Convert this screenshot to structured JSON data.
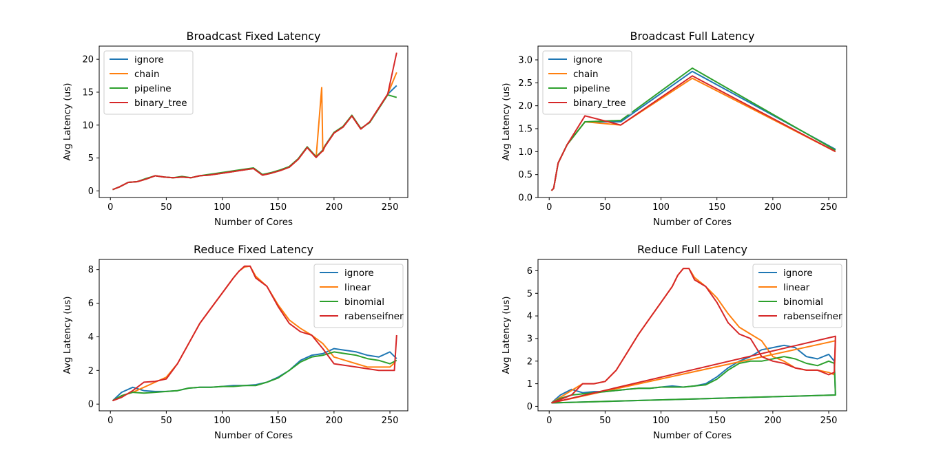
{
  "chart_data": [
    {
      "type": "line",
      "title": "Broadcast Fixed Latency",
      "xlabel": "Number of Cores",
      "ylabel": "Avg Latency (us)",
      "xlim": [
        -10,
        266
      ],
      "ylim": [
        -1,
        22
      ],
      "xticks": [
        0,
        50,
        100,
        150,
        200,
        250
      ],
      "yticks": [
        0,
        5,
        10,
        15,
        20
      ],
      "legend": "top-left",
      "series": [
        {
          "name": "ignore",
          "color": "#1f77b4",
          "x": [
            2,
            8,
            16,
            24,
            32,
            40,
            48,
            56,
            64,
            72,
            80,
            88,
            96,
            104,
            112,
            120,
            128,
            136,
            144,
            152,
            160,
            168,
            176,
            184,
            190,
            192,
            200,
            208,
            216,
            224,
            232,
            240,
            248,
            256
          ],
          "y": [
            0.2,
            0.6,
            1.3,
            1.4,
            1.8,
            2.3,
            2.1,
            2.0,
            2.1,
            2.0,
            2.3,
            2.4,
            2.6,
            2.8,
            3.0,
            3.2,
            3.4,
            2.4,
            2.7,
            3.1,
            3.6,
            4.8,
            6.6,
            5.1,
            6.2,
            6.8,
            8.8,
            9.7,
            11.4,
            9.4,
            10.5,
            12.6,
            14.7,
            16.0
          ]
        },
        {
          "name": "chain",
          "color": "#ff7f0e",
          "x": [
            2,
            8,
            16,
            24,
            32,
            40,
            48,
            56,
            64,
            72,
            80,
            88,
            96,
            104,
            112,
            120,
            128,
            136,
            144,
            152,
            160,
            168,
            176,
            184,
            189,
            190,
            192,
            200,
            208,
            216,
            224,
            232,
            240,
            248,
            256
          ],
          "y": [
            0.2,
            0.6,
            1.3,
            1.4,
            1.8,
            2.3,
            2.1,
            2.0,
            2.1,
            2.0,
            2.3,
            2.4,
            2.6,
            2.8,
            3.0,
            3.2,
            3.4,
            2.4,
            2.7,
            3.1,
            3.6,
            4.8,
            6.6,
            5.1,
            15.7,
            6.0,
            6.8,
            8.8,
            9.7,
            11.4,
            9.4,
            10.5,
            12.6,
            14.7,
            18.0
          ]
        },
        {
          "name": "pipeline",
          "color": "#2ca02c",
          "x": [
            2,
            8,
            16,
            24,
            32,
            40,
            48,
            56,
            64,
            72,
            80,
            88,
            96,
            104,
            112,
            120,
            128,
            136,
            144,
            152,
            160,
            168,
            176,
            184,
            190,
            192,
            200,
            208,
            216,
            224,
            232,
            240,
            248,
            256
          ],
          "y": [
            0.2,
            0.6,
            1.3,
            1.4,
            1.9,
            2.3,
            2.1,
            2.0,
            2.2,
            2.0,
            2.3,
            2.5,
            2.7,
            2.9,
            3.1,
            3.3,
            3.5,
            2.5,
            2.8,
            3.2,
            3.7,
            4.9,
            6.7,
            5.2,
            6.2,
            6.9,
            8.9,
            9.8,
            11.5,
            9.5,
            10.4,
            12.5,
            14.6,
            14.2
          ]
        },
        {
          "name": "binary_tree",
          "color": "#d62728",
          "x": [
            2,
            8,
            16,
            24,
            32,
            40,
            48,
            56,
            64,
            72,
            80,
            88,
            96,
            104,
            112,
            120,
            128,
            136,
            144,
            152,
            160,
            168,
            176,
            184,
            190,
            192,
            200,
            208,
            216,
            224,
            232,
            240,
            248,
            256
          ],
          "y": [
            0.2,
            0.6,
            1.3,
            1.4,
            1.8,
            2.3,
            2.1,
            2.0,
            2.1,
            2.0,
            2.3,
            2.4,
            2.6,
            2.8,
            3.0,
            3.2,
            3.4,
            2.4,
            2.7,
            3.1,
            3.6,
            4.8,
            6.6,
            5.1,
            6.1,
            6.8,
            8.8,
            9.7,
            11.4,
            9.4,
            10.5,
            12.6,
            14.7,
            21.0
          ]
        }
      ]
    },
    {
      "type": "line",
      "title": "Broadcast Full Latency",
      "xlabel": "Number of Cores",
      "ylabel": "Avg Latency (us)",
      "xlim": [
        -10,
        266
      ],
      "ylim": [
        0,
        3.3
      ],
      "xticks": [
        0,
        50,
        100,
        150,
        200,
        250
      ],
      "yticks": [
        0.0,
        0.5,
        1.0,
        1.5,
        2.0,
        2.5,
        3.0
      ],
      "legend": "top-left",
      "series": [
        {
          "name": "ignore",
          "color": "#1f77b4",
          "x": [
            2,
            4,
            8,
            16,
            32,
            64,
            128,
            256
          ],
          "y": [
            0.15,
            0.2,
            0.75,
            1.15,
            1.65,
            1.65,
            2.75,
            1.05
          ]
        },
        {
          "name": "chain",
          "color": "#ff7f0e",
          "x": [
            2,
            4,
            8,
            16,
            32,
            64,
            128,
            256
          ],
          "y": [
            0.15,
            0.2,
            0.75,
            1.15,
            1.65,
            1.58,
            2.6,
            1.0
          ]
        },
        {
          "name": "pipeline",
          "color": "#2ca02c",
          "x": [
            2,
            4,
            8,
            16,
            32,
            64,
            128,
            256
          ],
          "y": [
            0.15,
            0.2,
            0.75,
            1.15,
            1.65,
            1.68,
            2.82,
            1.03
          ]
        },
        {
          "name": "binary_tree",
          "color": "#d62728",
          "x": [
            2,
            4,
            8,
            16,
            32,
            64,
            128,
            256
          ],
          "y": [
            0.15,
            0.2,
            0.75,
            1.15,
            1.78,
            1.58,
            2.65,
            1.0
          ]
        }
      ]
    },
    {
      "type": "line",
      "title": "Reduce Fixed Latency",
      "xlabel": "Number of Cores",
      "ylabel": "Avg Latency (us)",
      "xlim": [
        -10,
        266
      ],
      "ylim": [
        -0.4,
        8.6
      ],
      "xticks": [
        0,
        50,
        100,
        150,
        200,
        250
      ],
      "yticks": [
        0,
        2,
        4,
        6,
        8
      ],
      "legend": "top-right",
      "series": [
        {
          "name": "ignore",
          "color": "#1f77b4",
          "x": [
            2,
            10,
            20,
            30,
            40,
            50,
            60,
            70,
            80,
            90,
            100,
            110,
            120,
            130,
            140,
            150,
            160,
            170,
            180,
            190,
            200,
            210,
            220,
            230,
            240,
            250,
            256
          ],
          "y": [
            0.2,
            0.7,
            1.0,
            0.8,
            0.75,
            0.75,
            0.8,
            0.95,
            1.0,
            1.0,
            1.05,
            1.1,
            1.1,
            1.15,
            1.3,
            1.6,
            2.0,
            2.6,
            2.9,
            3.0,
            3.3,
            3.2,
            3.1,
            2.9,
            2.8,
            3.1,
            2.7
          ]
        },
        {
          "name": "linear",
          "color": "#ff7f0e",
          "x": [
            2,
            10,
            20,
            30,
            40,
            50,
            60,
            70,
            80,
            90,
            100,
            110,
            115,
            120,
            125,
            130,
            140,
            150,
            160,
            170,
            180,
            190,
            200,
            210,
            220,
            230,
            240,
            250,
            255
          ],
          "y": [
            0.2,
            0.5,
            0.7,
            1.0,
            1.3,
            1.6,
            2.4,
            3.6,
            4.8,
            5.7,
            6.6,
            7.5,
            7.9,
            8.15,
            8.2,
            7.6,
            7.0,
            5.9,
            5.0,
            4.5,
            4.1,
            3.6,
            2.8,
            2.6,
            2.4,
            2.2,
            2.2,
            2.2,
            2.5
          ]
        },
        {
          "name": "binomial",
          "color": "#2ca02c",
          "x": [
            2,
            10,
            20,
            30,
            40,
            50,
            60,
            70,
            80,
            90,
            100,
            110,
            120,
            130,
            140,
            150,
            160,
            170,
            180,
            190,
            200,
            210,
            220,
            230,
            240,
            250,
            256
          ],
          "y": [
            0.2,
            0.5,
            0.7,
            0.65,
            0.7,
            0.75,
            0.8,
            0.95,
            1.0,
            1.0,
            1.05,
            1.05,
            1.1,
            1.1,
            1.3,
            1.55,
            2.0,
            2.5,
            2.8,
            2.9,
            3.1,
            3.0,
            2.9,
            2.7,
            2.6,
            2.4,
            2.6
          ]
        },
        {
          "name": "rabenseifner",
          "color": "#d62728",
          "x": [
            2,
            10,
            20,
            30,
            40,
            50,
            60,
            70,
            80,
            90,
            100,
            110,
            115,
            120,
            125,
            130,
            140,
            150,
            160,
            170,
            180,
            190,
            200,
            210,
            220,
            230,
            240,
            250,
            254,
            256
          ],
          "y": [
            0.2,
            0.4,
            0.8,
            1.3,
            1.35,
            1.5,
            2.4,
            3.6,
            4.8,
            5.7,
            6.6,
            7.5,
            7.9,
            8.2,
            8.2,
            7.5,
            7.0,
            5.8,
            4.8,
            4.3,
            4.1,
            3.3,
            2.4,
            2.3,
            2.2,
            2.1,
            2.0,
            2.0,
            2.0,
            4.1
          ]
        }
      ]
    },
    {
      "type": "line",
      "title": "Reduce Full Latency",
      "xlabel": "Number of Cores",
      "ylabel": "Avg Latency (us)",
      "xlim": [
        -10,
        266
      ],
      "ylim": [
        -0.2,
        6.5
      ],
      "xticks": [
        0,
        50,
        100,
        150,
        200,
        250
      ],
      "yticks": [
        0,
        1,
        2,
        3,
        4,
        5,
        6
      ],
      "legend": "top-right",
      "series": [
        {
          "name": "ignore",
          "color": "#1f77b4",
          "x": [
            2,
            10,
            20,
            30,
            40,
            50,
            60,
            70,
            80,
            90,
            100,
            110,
            120,
            130,
            140,
            150,
            160,
            170,
            180,
            190,
            200,
            210,
            220,
            230,
            240,
            250,
            255,
            256,
            2
          ],
          "y": [
            0.15,
            0.5,
            0.75,
            0.6,
            0.65,
            0.65,
            0.7,
            0.75,
            0.8,
            0.8,
            0.85,
            0.9,
            0.85,
            0.9,
            1.0,
            1.3,
            1.7,
            2.0,
            2.2,
            2.5,
            2.6,
            2.7,
            2.6,
            2.2,
            2.1,
            2.3,
            2.0,
            0.5,
            0.15
          ]
        },
        {
          "name": "linear",
          "color": "#ff7f0e",
          "x": [
            2,
            10,
            20,
            30,
            40,
            50,
            60,
            70,
            80,
            90,
            100,
            110,
            115,
            120,
            125,
            130,
            140,
            150,
            160,
            170,
            180,
            190,
            200,
            210,
            220,
            230,
            240,
            250,
            255,
            256,
            2
          ],
          "y": [
            0.15,
            0.4,
            0.7,
            1.0,
            1.0,
            1.1,
            1.6,
            2.4,
            3.2,
            3.9,
            4.6,
            5.3,
            5.8,
            6.1,
            6.1,
            5.7,
            5.3,
            4.8,
            4.1,
            3.5,
            3.2,
            2.9,
            2.2,
            2.0,
            1.7,
            1.6,
            1.6,
            1.5,
            1.4,
            2.9,
            0.15
          ]
        },
        {
          "name": "binomial",
          "color": "#2ca02c",
          "x": [
            2,
            10,
            20,
            30,
            40,
            50,
            60,
            70,
            80,
            90,
            100,
            110,
            120,
            130,
            140,
            150,
            160,
            170,
            180,
            190,
            200,
            210,
            220,
            230,
            240,
            250,
            255,
            256,
            2
          ],
          "y": [
            0.15,
            0.35,
            0.5,
            0.55,
            0.6,
            0.65,
            0.7,
            0.75,
            0.8,
            0.8,
            0.85,
            0.85,
            0.85,
            0.9,
            0.95,
            1.2,
            1.6,
            1.9,
            2.0,
            2.0,
            2.1,
            2.2,
            2.1,
            1.9,
            1.8,
            2.0,
            1.9,
            0.5,
            0.15
          ]
        },
        {
          "name": "rabenseifner",
          "color": "#d62728",
          "x": [
            2,
            10,
            20,
            30,
            40,
            50,
            60,
            70,
            80,
            90,
            100,
            110,
            115,
            120,
            125,
            130,
            140,
            150,
            160,
            170,
            180,
            190,
            200,
            210,
            220,
            230,
            240,
            250,
            255,
            256,
            2
          ],
          "y": [
            0.15,
            0.3,
            0.5,
            1.0,
            1.0,
            1.1,
            1.6,
            2.4,
            3.2,
            3.9,
            4.6,
            5.3,
            5.8,
            6.1,
            6.1,
            5.6,
            5.3,
            4.6,
            3.7,
            3.2,
            3.0,
            2.2,
            2.0,
            1.9,
            1.7,
            1.6,
            1.6,
            1.4,
            1.5,
            3.1,
            0.15
          ]
        }
      ]
    }
  ]
}
